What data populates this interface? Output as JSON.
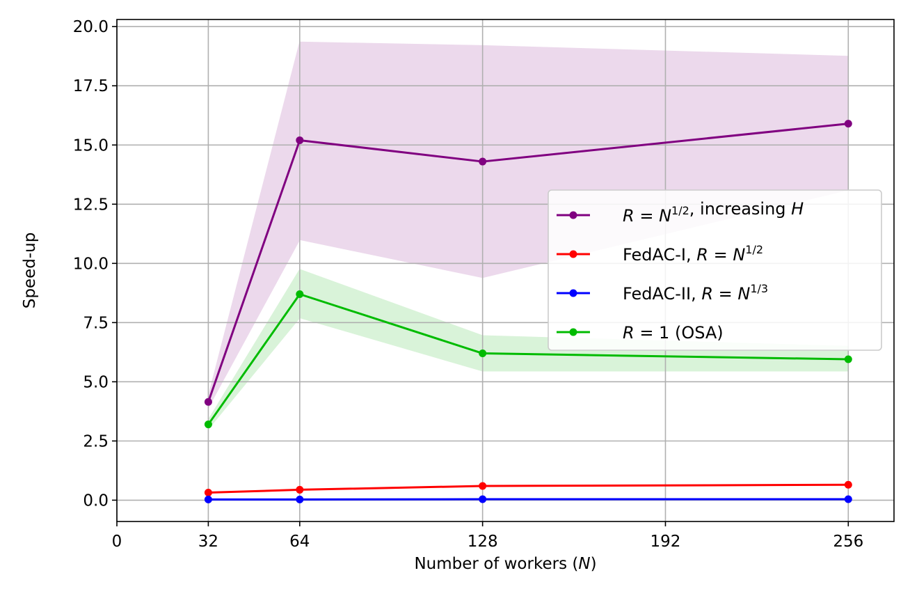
{
  "chart_data": {
    "type": "line",
    "title": "",
    "xlabel": {
      "prefix": "Number of workers (",
      "var": "N",
      "suffix": ")"
    },
    "ylabel": "Speed-up",
    "xlim": [
      0,
      272
    ],
    "ylim": [
      -0.9,
      20.3
    ],
    "xticks": [
      0,
      32,
      64,
      128,
      192,
      256
    ],
    "yticks": [
      0.0,
      2.5,
      5.0,
      7.5,
      10.0,
      12.5,
      15.0,
      17.5,
      20.0
    ],
    "ytick_labels": [
      "0.0",
      "2.5",
      "5.0",
      "7.5",
      "10.0",
      "12.5",
      "15.0",
      "17.5",
      "20.0"
    ],
    "grid": true,
    "legend_position": "center-right",
    "x": [
      32,
      64,
      128,
      256
    ],
    "series": [
      {
        "name": "R = N^{1/2}, increasing H",
        "legend": [
          {
            "t": "R",
            "i": true
          },
          {
            "t": " = "
          },
          {
            "t": "N",
            "i": true
          },
          {
            "t": "1/2",
            "sup": true
          },
          {
            "t": ", increasing "
          },
          {
            "t": "H",
            "i": true
          }
        ],
        "color": "#800080",
        "band_color": "#ecd9ec",
        "values": [
          4.15,
          15.2,
          14.3,
          15.9
        ],
        "band_low": [
          3.9,
          11.0,
          9.4,
          13.1
        ],
        "band_high": [
          4.4,
          19.35,
          19.2,
          18.75
        ]
      },
      {
        "name": "FedAC-I, R = N^{1/2}",
        "legend": [
          {
            "t": "FedAC-I, "
          },
          {
            "t": "R",
            "i": true
          },
          {
            "t": " = "
          },
          {
            "t": "N",
            "i": true
          },
          {
            "t": "1/2",
            "sup": true
          }
        ],
        "color": "#ff0000",
        "values": [
          0.32,
          0.44,
          0.6,
          0.65
        ]
      },
      {
        "name": "FedAC-II, R = N^{1/3}",
        "legend": [
          {
            "t": "FedAC-II, "
          },
          {
            "t": "R",
            "i": true
          },
          {
            "t": " = "
          },
          {
            "t": "N",
            "i": true
          },
          {
            "t": "1/3",
            "sup": true
          }
        ],
        "color": "#0000ff",
        "values": [
          0.03,
          0.03,
          0.04,
          0.04
        ]
      },
      {
        "name": "R = 1 (OSA)",
        "legend": [
          {
            "t": "R",
            "i": true
          },
          {
            "t": " = 1 (OSA)"
          }
        ],
        "color": "#00bb00",
        "band_color": "#d9f3d9",
        "values": [
          3.2,
          8.7,
          6.2,
          5.95
        ],
        "band_low": [
          3.0,
          7.7,
          5.45,
          5.45
        ],
        "band_high": [
          3.4,
          9.75,
          6.95,
          6.5
        ]
      }
    ]
  }
}
